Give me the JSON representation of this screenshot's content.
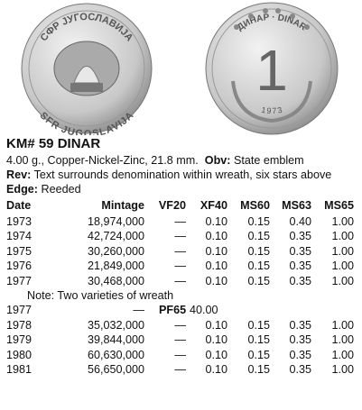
{
  "coins": {
    "obverse": {
      "top_legend": "СФР ЈУГОСЛАВИЈА",
      "bottom_legend": "SFR JUGOSLAVIJA"
    },
    "reverse": {
      "top_legend": "ДИНАР · DINAR",
      "denomination": "1",
      "year": "1973"
    }
  },
  "header": {
    "title": "KM# 59  DINAR"
  },
  "description": {
    "specs": "4.00 g., Copper-Nickel-Zinc, 21.8 mm.",
    "obv_label": "Obv:",
    "obv": "State emblem",
    "rev_label": "Rev:",
    "rev": "Text surrounds denomination within wreath, six stars above",
    "edge_label": "Edge:",
    "edge": "Reeded"
  },
  "table": {
    "columns": [
      "Date",
      "Mintage",
      "VF20",
      "XF40",
      "MS60",
      "MS63",
      "MS65"
    ],
    "rows": [
      {
        "cells": [
          "1973",
          "18,974,000",
          "—",
          "0.10",
          "0.15",
          "0.40",
          "1.00"
        ]
      },
      {
        "cells": [
          "1974",
          "42,724,000",
          "—",
          "0.10",
          "0.15",
          "0.35",
          "1.00"
        ]
      },
      {
        "cells": [
          "1975",
          "30,260,000",
          "—",
          "0.10",
          "0.15",
          "0.35",
          "1.00"
        ]
      },
      {
        "cells": [
          "1976",
          "21,849,000",
          "—",
          "0.10",
          "0.15",
          "0.35",
          "1.00"
        ]
      },
      {
        "cells": [
          "1977",
          "30,468,000",
          "—",
          "0.10",
          "0.15",
          "0.35",
          "1.00"
        ]
      },
      {
        "note": "Note: Two varieties of wreath"
      },
      {
        "proof": {
          "date": "1977",
          "mintage": "—",
          "grade": "PF65",
          "price": "40.00"
        }
      },
      {
        "cells": [
          "1978",
          "35,032,000",
          "—",
          "0.10",
          "0.15",
          "0.35",
          "1.00"
        ]
      },
      {
        "cells": [
          "1979",
          "39,844,000",
          "—",
          "0.10",
          "0.15",
          "0.35",
          "1.00"
        ]
      },
      {
        "cells": [
          "1980",
          "60,630,000",
          "—",
          "0.10",
          "0.15",
          "0.35",
          "1.00"
        ]
      },
      {
        "cells": [
          "1981",
          "56,650,000",
          "—",
          "0.10",
          "0.15",
          "0.35",
          "1.00"
        ]
      }
    ]
  }
}
